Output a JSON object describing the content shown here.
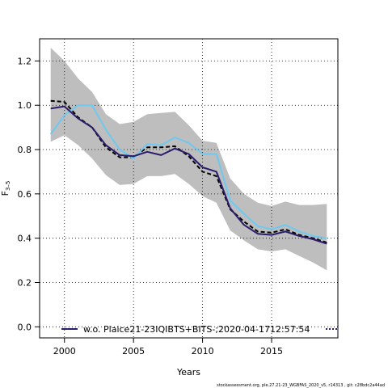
{
  "chart_data": {
    "type": "line",
    "xlabel": "Years",
    "ylabel_main": "F",
    "ylabel_sub": "3–5",
    "xlim": [
      1998.2,
      2019.8
    ],
    "ylim": [
      -0.05,
      1.3
    ],
    "x_ticks": [
      2000,
      2005,
      2010,
      2015
    ],
    "y_ticks": [
      0.0,
      0.2,
      0.4,
      0.6,
      0.8,
      1.0,
      1.2
    ],
    "y_tick_labels": [
      "0.0",
      "0.2",
      "0.4",
      "0.6",
      "0.8",
      "1.0",
      "1.2"
    ],
    "grid": true,
    "x": [
      1999,
      2000,
      2001,
      2002,
      2003,
      2004,
      2005,
      2006,
      2007,
      2008,
      2009,
      2010,
      2011,
      2012,
      2013,
      2014,
      2015,
      2016,
      2017,
      2018,
      2019
    ],
    "band": {
      "upper": [
        1.26,
        1.2,
        1.12,
        1.06,
        0.96,
        0.915,
        0.925,
        0.96,
        0.965,
        0.97,
        0.91,
        0.84,
        0.83,
        0.67,
        0.6,
        0.56,
        0.545,
        0.565,
        0.55,
        0.55,
        0.555
      ],
      "lower": [
        0.835,
        0.865,
        0.82,
        0.76,
        0.685,
        0.64,
        0.645,
        0.68,
        0.68,
        0.69,
        0.645,
        0.59,
        0.56,
        0.435,
        0.39,
        0.35,
        0.34,
        0.35,
        0.32,
        0.29,
        0.255
      ],
      "color": "#bebebe"
    },
    "series": [
      {
        "values": [
          1.02,
          1.015,
          0.945,
          0.9,
          0.81,
          0.765,
          0.765,
          0.81,
          0.81,
          0.815,
          0.77,
          0.7,
          0.68,
          0.53,
          0.475,
          0.43,
          0.425,
          0.44,
          0.415,
          0.4,
          0.38
        ],
        "color": "#000000",
        "style": "dashed"
      },
      {
        "values": [
          0.87,
          0.955,
          1.0,
          1.0,
          0.89,
          0.8,
          0.76,
          0.825,
          0.82,
          0.855,
          0.83,
          0.78,
          0.78,
          0.57,
          0.51,
          0.455,
          0.44,
          0.46,
          0.43,
          0.41,
          0.4
        ],
        "color": "#6fc8f0",
        "style": "solid"
      },
      {
        "values": [
          0.985,
          0.995,
          0.94,
          0.9,
          0.82,
          0.775,
          0.77,
          0.79,
          0.775,
          0.805,
          0.78,
          0.72,
          0.7,
          0.535,
          0.46,
          0.42,
          0.415,
          0.43,
          0.41,
          0.395,
          0.375
        ],
        "color": "#2b1b6b",
        "style": "solid"
      }
    ],
    "legend": {
      "label": "w.o. Plaice21-23IQIBTS+BITS-;2020-04-1712:57:54",
      "color": "#2b1b6b"
    },
    "footer": "stockassessment.org, ple.27.21-23_WGBFAS_2020_v5, r14313 , git: c28bdc2a44ad"
  }
}
